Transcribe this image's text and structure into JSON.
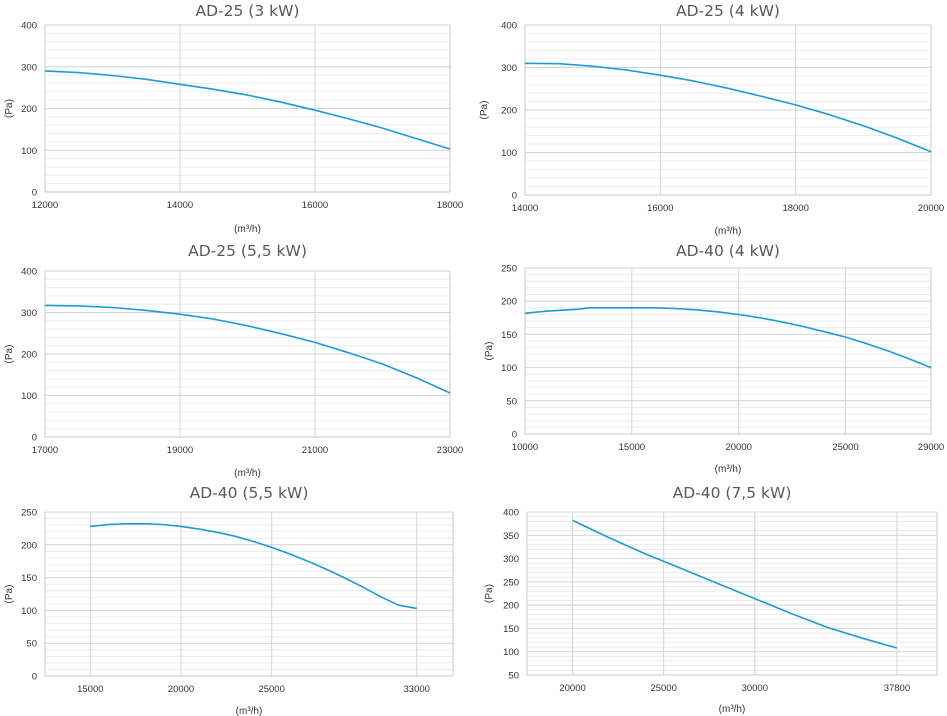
{
  "colors": {
    "line": "#1f9bd1"
  },
  "chart_data": [
    {
      "type": "line",
      "title": "AD-25 (3 kW)",
      "xlabel": "(m³/h)",
      "ylabel": "(Pa)",
      "xlim": [
        12000,
        18000
      ],
      "ylim": [
        0,
        400
      ],
      "xticks": [
        12000,
        14000,
        16000,
        18000
      ],
      "yticks": [
        0,
        100,
        200,
        300,
        400
      ],
      "x": [
        12000,
        12500,
        13000,
        13500,
        14000,
        14500,
        15000,
        15500,
        16000,
        16500,
        17000,
        17500,
        18000
      ],
      "y": [
        290,
        286,
        279,
        270,
        258,
        246,
        232,
        215,
        196,
        175,
        153,
        128,
        103
      ]
    },
    {
      "type": "line",
      "title": "AD-25 (4 kW)",
      "xlabel": "(m³/h)",
      "ylabel": "(Pa)",
      "xlim": [
        14000,
        20000
      ],
      "ylim": [
        0,
        400
      ],
      "xticks": [
        14000,
        16000,
        18000,
        20000
      ],
      "yticks": [
        0,
        100,
        200,
        300,
        400
      ],
      "x": [
        14000,
        14500,
        15000,
        15500,
        16000,
        16500,
        17000,
        17500,
        18000,
        18500,
        19000,
        19500,
        20000
      ],
      "y": [
        310,
        309,
        303,
        294,
        282,
        268,
        251,
        232,
        212,
        189,
        163,
        134,
        102
      ]
    },
    {
      "type": "line",
      "title": "AD-25 (5,5 kW)",
      "xlabel": "(m³/h)",
      "ylabel": "(Pa)",
      "xlim": [
        17000,
        23000
      ],
      "ylim": [
        0,
        400
      ],
      "xticks": [
        17000,
        19000,
        21000,
        23000
      ],
      "yticks": [
        0,
        100,
        200,
        300,
        400
      ],
      "x": [
        17000,
        17500,
        18000,
        18500,
        19000,
        19500,
        20000,
        20500,
        21000,
        21500,
        22000,
        22500,
        23000
      ],
      "y": [
        317,
        316,
        312,
        305,
        296,
        284,
        268,
        249,
        228,
        203,
        176,
        143,
        106
      ]
    },
    {
      "type": "line",
      "title": "AD-40 (4 kW)",
      "xlabel": "(m³/h)",
      "ylabel": "(Pa)",
      "xlim": [
        10000,
        29000
      ],
      "ylim": [
        0,
        250
      ],
      "xticks": [
        10000,
        15000,
        20000,
        25000,
        29000
      ],
      "yticks": [
        0,
        50,
        100,
        150,
        200,
        250
      ],
      "x": [
        10000,
        11000,
        12500,
        13000,
        15000,
        16000,
        17000,
        18000,
        19000,
        20000,
        21000,
        22000,
        23000,
        24000,
        25000,
        26000,
        27000,
        28000,
        29000
      ],
      "y": [
        182,
        185,
        188,
        190,
        190,
        190,
        189,
        187,
        184,
        180,
        175,
        169,
        162,
        154,
        146,
        136,
        125,
        113,
        100
      ]
    },
    {
      "type": "line",
      "title": "AD-40 (5,5 kW)",
      "xlabel": "(m³/h)",
      "ylabel": "(Pa)",
      "xlim": [
        12500,
        35000
      ],
      "ylim": [
        0,
        250
      ],
      "xticks": [
        15000,
        20000,
        25000,
        33000
      ],
      "yticks": [
        0,
        50,
        100,
        150,
        200,
        250
      ],
      "x": [
        15000,
        16000,
        17000,
        18000,
        19000,
        20000,
        21000,
        22000,
        23000,
        24000,
        25000,
        26000,
        27000,
        28000,
        29000,
        30000,
        31000,
        32000,
        33000
      ],
      "y": [
        228,
        231,
        232,
        232,
        231,
        228,
        224,
        219,
        213,
        205,
        196,
        186,
        175,
        163,
        150,
        136,
        121,
        108,
        103
      ]
    },
    {
      "type": "line",
      "title": "AD-40 (7,5 kW)",
      "xlabel": "(m³/h)",
      "ylabel": "(Pa)",
      "xlim": [
        17500,
        40000
      ],
      "ylim": [
        50,
        400
      ],
      "xticks": [
        20000,
        25000,
        30000,
        37800
      ],
      "yticks": [
        50,
        100,
        150,
        200,
        250,
        300,
        350,
        400
      ],
      "x": [
        20000,
        22000,
        24000,
        26000,
        28000,
        30000,
        32000,
        34000,
        36000,
        37800
      ],
      "y": [
        382,
        345,
        310,
        278,
        246,
        214,
        182,
        152,
        128,
        108
      ]
    }
  ]
}
